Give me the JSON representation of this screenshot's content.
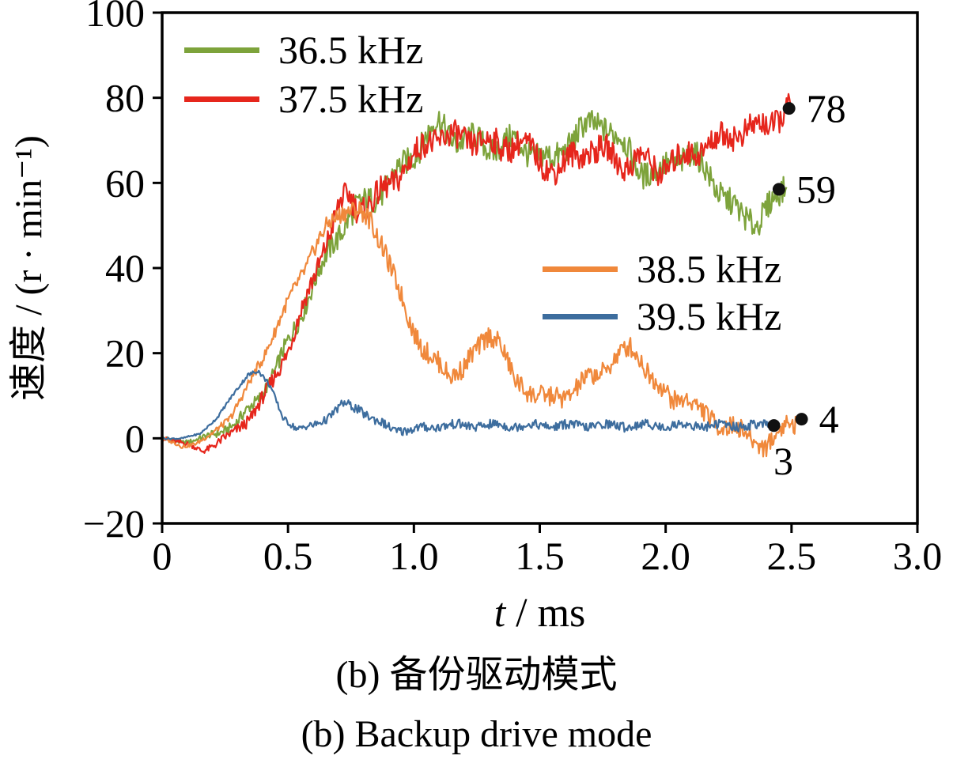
{
  "figure": {
    "caption_zh": "(b)  备份驱动模式",
    "caption_en": "(b)  Backup drive mode"
  },
  "chart_data": {
    "type": "line",
    "title": "",
    "xlabel": "t / ms",
    "xlabel_var": "t",
    "xlabel_rest": " / ms",
    "ylabel": "速度 / (r · min⁻¹)",
    "xlim": [
      0,
      3.0
    ],
    "ylim": [
      -20,
      100
    ],
    "xticks": [
      "0",
      "0.5",
      "1.0",
      "1.5",
      "2.0",
      "2.5",
      "3.0"
    ],
    "xtick_values": [
      0,
      0.5,
      1.0,
      1.5,
      2.0,
      2.5,
      3.0
    ],
    "yticks": [
      "-20",
      "0",
      "20",
      "40",
      "60",
      "80",
      "100"
    ],
    "ytick_values": [
      -20,
      0,
      20,
      40,
      60,
      80,
      100
    ],
    "grid": false,
    "legend_groups": [
      {
        "position": "top-left",
        "series": [
          0,
          1
        ]
      },
      {
        "position": "middle-right",
        "series": [
          2,
          3
        ]
      }
    ],
    "series": [
      {
        "name": "36.5 kHz",
        "color": "#7da33b",
        "noise": 3.2,
        "end_value": 59,
        "anchors_x": [
          0,
          0.08,
          0.15,
          0.22,
          0.3,
          0.38,
          0.45,
          0.52,
          0.6,
          0.68,
          0.74,
          0.8,
          0.87,
          0.93,
          1.0,
          1.05,
          1.1,
          1.17,
          1.25,
          1.32,
          1.4,
          1.47,
          1.55,
          1.62,
          1.68,
          1.75,
          1.82,
          1.9,
          1.97,
          2.03,
          2.1,
          2.17,
          2.23,
          2.3,
          2.36,
          2.42,
          2.48
        ],
        "anchors_y": [
          0,
          -1,
          0,
          1,
          4,
          9,
          16,
          25,
          36,
          46,
          52,
          55,
          58,
          62,
          67,
          71,
          74,
          70,
          70,
          68,
          70,
          67,
          65,
          70,
          73,
          74,
          70,
          63,
          62,
          65,
          67,
          62,
          57,
          52,
          51,
          55,
          59
        ]
      },
      {
        "name": "37.5 kHz",
        "color": "#e6261c",
        "noise": 3.2,
        "end_value": 78,
        "anchors_x": [
          0,
          0.08,
          0.16,
          0.22,
          0.28,
          0.35,
          0.42,
          0.5,
          0.58,
          0.65,
          0.71,
          0.74,
          0.78,
          0.83,
          0.88,
          0.94,
          1.0,
          1.06,
          1.12,
          1.2,
          1.28,
          1.35,
          1.42,
          1.5,
          1.57,
          1.63,
          1.7,
          1.77,
          1.84,
          1.9,
          1.97,
          2.04,
          2.1,
          2.17,
          2.24,
          2.3,
          2.37,
          2.44,
          2.5
        ],
        "anchors_y": [
          0,
          -1,
          -3,
          -1,
          1,
          5,
          11,
          21,
          34,
          46,
          55,
          57,
          54,
          55,
          58,
          62,
          66,
          70,
          71,
          70,
          70,
          68,
          70,
          65,
          63,
          66,
          68,
          67,
          64,
          66,
          63,
          65,
          67,
          69,
          71,
          72,
          73,
          75,
          78
        ]
      },
      {
        "name": "38.5 kHz",
        "color": "#f0883b",
        "noise": 2.4,
        "end_value": 4,
        "anchors_x": [
          0,
          0.08,
          0.14,
          0.2,
          0.27,
          0.33,
          0.4,
          0.47,
          0.54,
          0.6,
          0.66,
          0.72,
          0.78,
          0.83,
          0.88,
          0.93,
          0.98,
          1.03,
          1.08,
          1.14,
          1.2,
          1.26,
          1.3,
          1.34,
          1.4,
          1.47,
          1.54,
          1.6,
          1.67,
          1.73,
          1.8,
          1.86,
          1.9,
          1.96,
          2.02,
          2.08,
          2.14,
          2.2,
          2.28,
          2.35,
          2.4,
          2.44,
          2.48,
          2.52
        ],
        "anchors_y": [
          0,
          -2,
          -1,
          1,
          5,
          11,
          19,
          28,
          37,
          44,
          50,
          54,
          53,
          51,
          45,
          36,
          28,
          22,
          18,
          15,
          17,
          21,
          25,
          23,
          13,
          11,
          9,
          10,
          13,
          15,
          19,
          21,
          19,
          13,
          9,
          10,
          6,
          4,
          2,
          0,
          -2,
          0,
          4,
          4
        ]
      },
      {
        "name": "39.5 kHz",
        "color": "#3d6d9e",
        "noise": 1.1,
        "end_value": 3,
        "anchors_x": [
          0,
          0.08,
          0.15,
          0.22,
          0.28,
          0.34,
          0.38,
          0.43,
          0.48,
          0.54,
          0.6,
          0.66,
          0.72,
          0.78,
          0.85,
          0.92,
          1.0,
          1.1,
          1.25,
          1.4,
          1.6,
          1.8,
          2.0,
          2.2,
          2.35,
          2.43
        ],
        "anchors_y": [
          0,
          0,
          1,
          5,
          10,
          15,
          16,
          12,
          5,
          2,
          3,
          5,
          8,
          7,
          4,
          2,
          2,
          3,
          3,
          3,
          3,
          3,
          3,
          3,
          3,
          3
        ]
      }
    ],
    "endpoint_annotations": [
      {
        "series": "37.5 kHz",
        "x": 2.49,
        "y": 77.5,
        "label": "78",
        "label_below": false
      },
      {
        "series": "36.5 kHz",
        "x": 2.45,
        "y": 58.5,
        "label": "59",
        "label_below": false
      },
      {
        "series": "38.5 kHz",
        "x": 2.54,
        "y": 4.5,
        "label": "4",
        "label_below": false
      },
      {
        "series": "39.5 kHz",
        "x": 2.43,
        "y": 3,
        "label": "3",
        "label_below": true
      }
    ]
  }
}
